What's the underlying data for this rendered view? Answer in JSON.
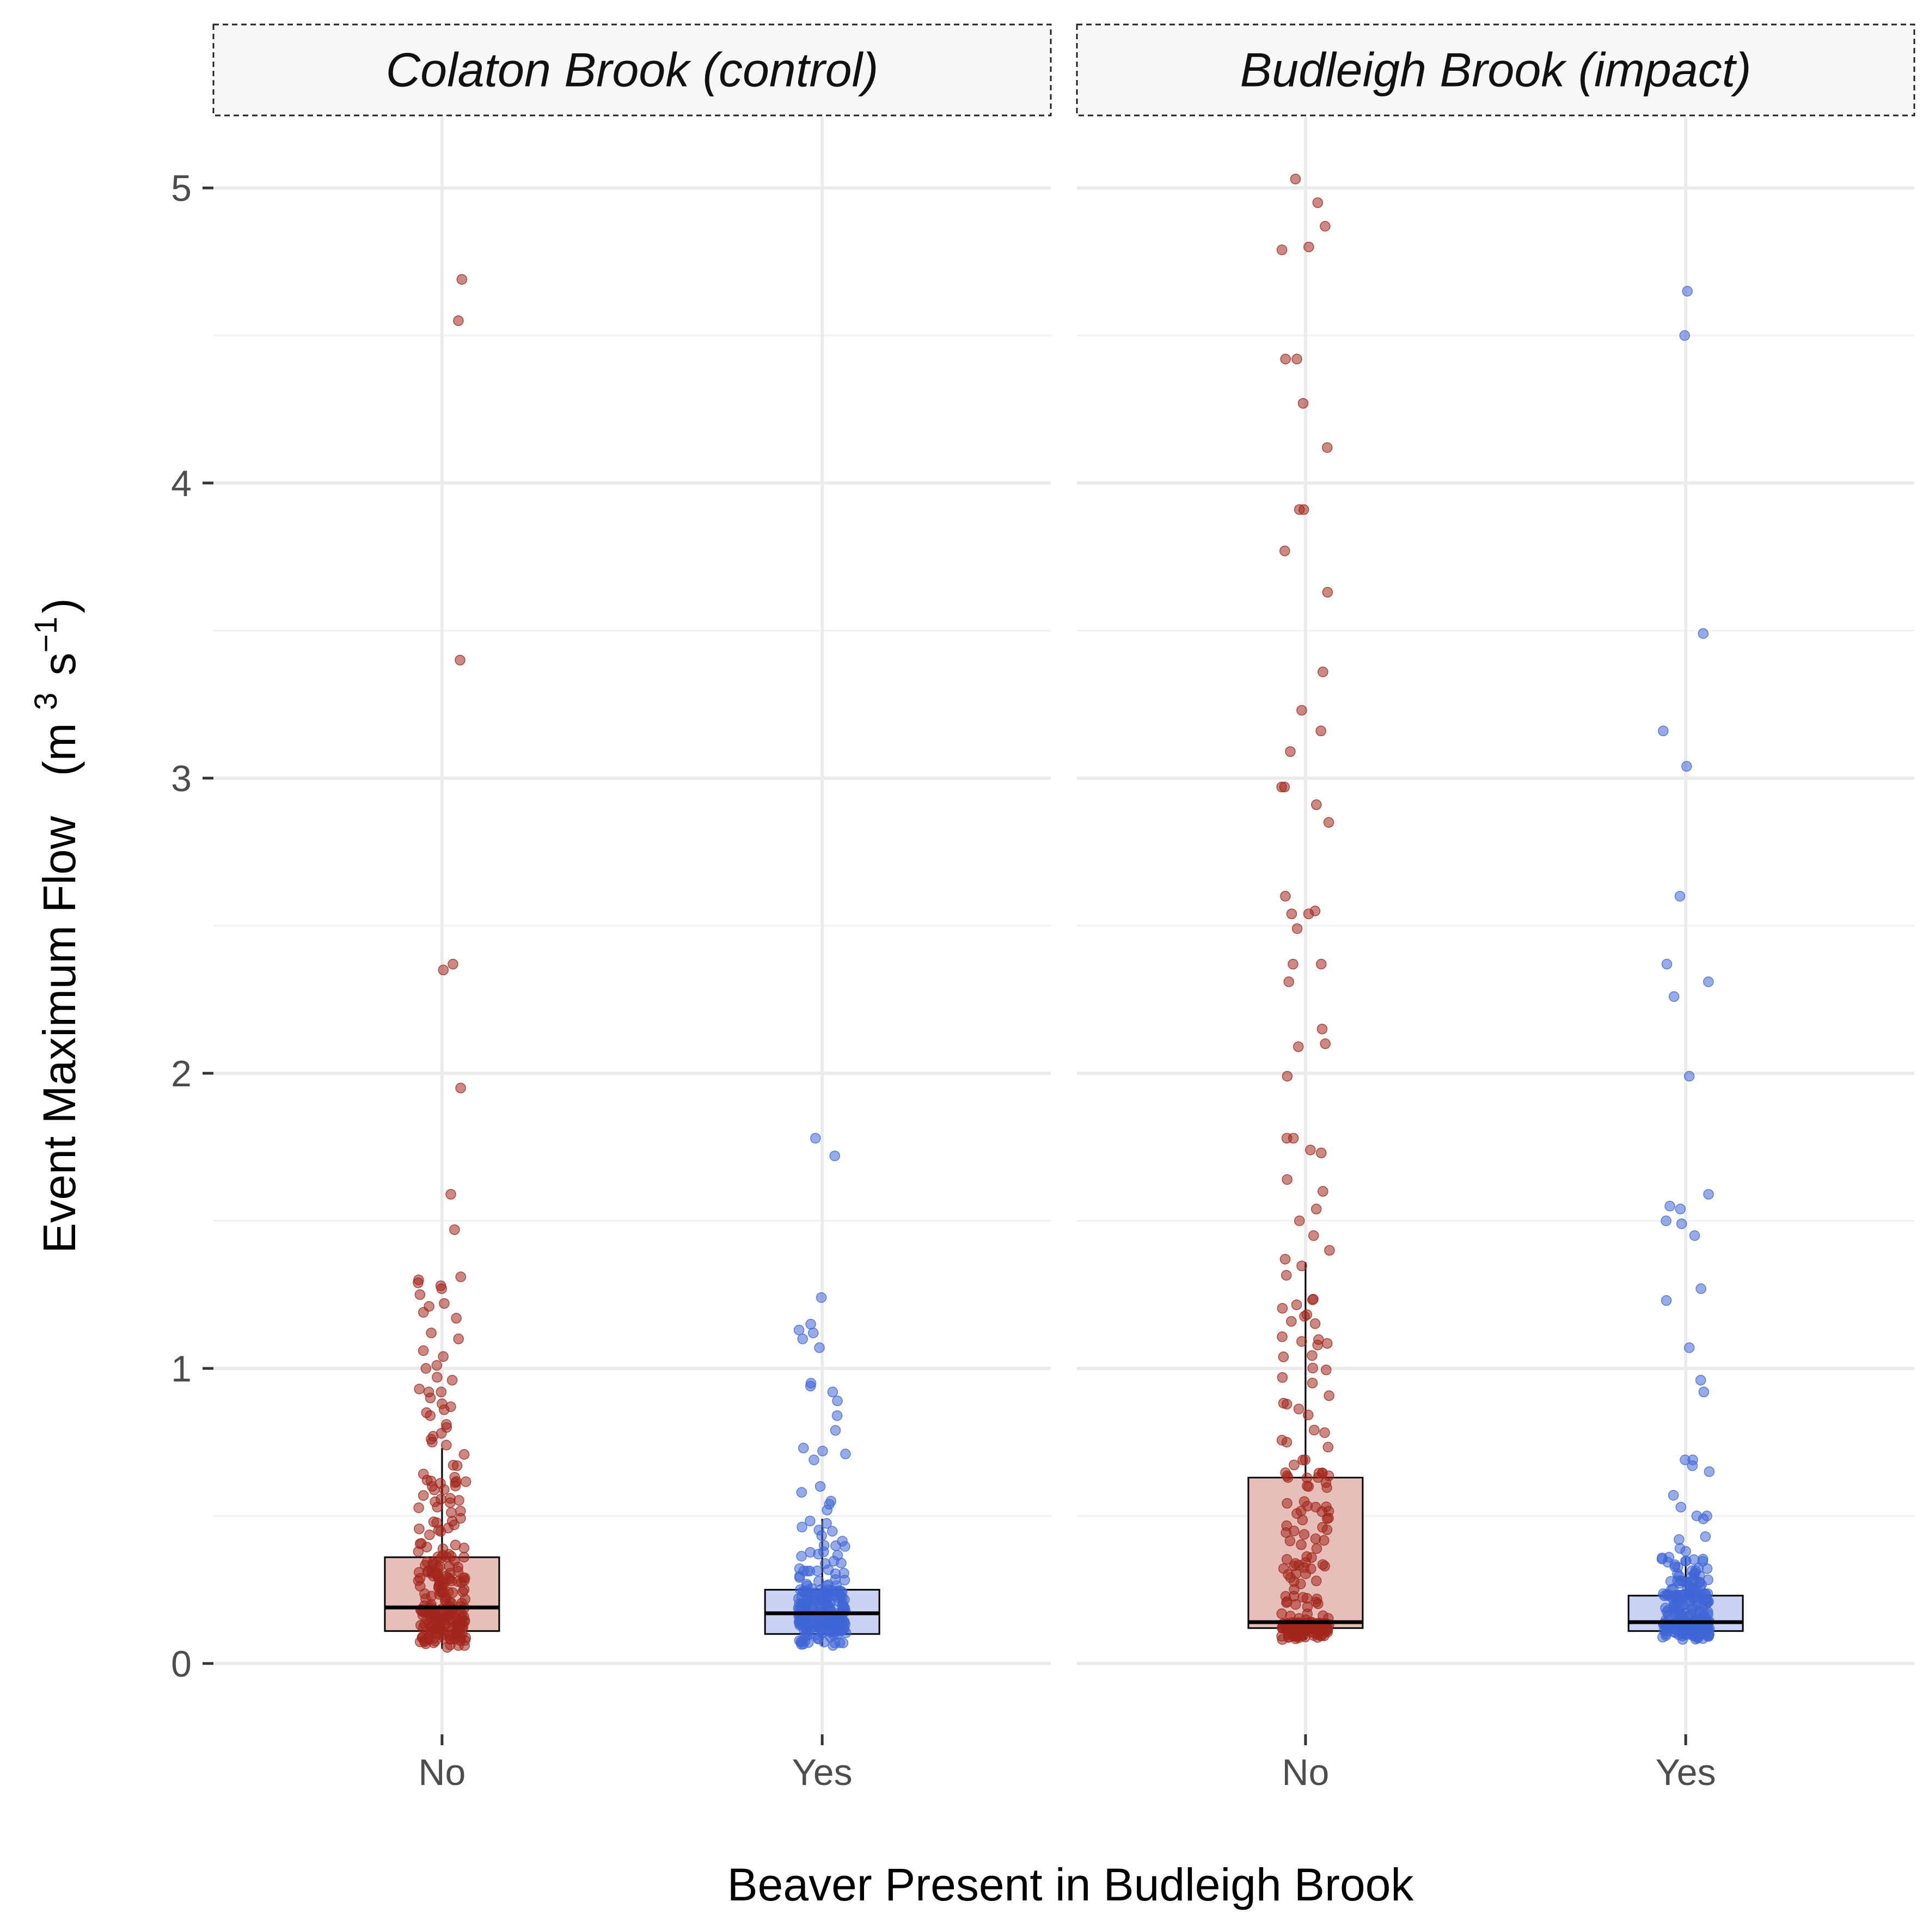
{
  "chart_data": {
    "type": "box+jitter",
    "xlabel": "Beaver Present in Budleigh Brook",
    "ylabel": "Event Maximum Flow",
    "ylabel_unit": "(m3 s-1)",
    "ylim": [
      -0.24,
      5.24
    ],
    "yticks": [
      0,
      1,
      2,
      3,
      4,
      5
    ],
    "categories": [
      "No",
      "Yes"
    ],
    "colors": {
      "No": {
        "point": "#a3271c",
        "box_fill": "#e3b8b2"
      },
      "Yes": {
        "point": "#3f66d6",
        "box_fill": "#c3cdf2"
      }
    },
    "panels": [
      {
        "title": "Colaton Brook (control)",
        "groups": [
          {
            "category": "No",
            "box": {
              "q1": 0.11,
              "median": 0.19,
              "q3": 0.36,
              "whisker_low": 0.05,
              "whisker_high": 0.73
            },
            "outliers": [
              4.69,
              4.55,
              3.4,
              2.37,
              2.35,
              1.95,
              1.59,
              1.47,
              1.31,
              1.3,
              1.29,
              1.28,
              1.27,
              1.25,
              1.22,
              1.21,
              1.19,
              1.17,
              1.12,
              1.1,
              1.06,
              1.04,
              1.01,
              1.0,
              0.97,
              0.96,
              0.93,
              0.92,
              0.92,
              0.9,
              0.88,
              0.87,
              0.86,
              0.85,
              0.84,
              0.81,
              0.8,
              0.78,
              0.77,
              0.76,
              0.75,
              0.74
            ]
          },
          {
            "category": "Yes",
            "box": {
              "q1": 0.1,
              "median": 0.17,
              "q3": 0.25,
              "whisker_low": 0.06,
              "whisker_high": 0.49
            },
            "outliers": [
              1.78,
              1.72,
              1.24,
              1.15,
              1.13,
              1.12,
              1.1,
              1.07,
              0.95,
              0.94,
              0.92,
              0.89,
              0.84,
              0.79,
              0.73,
              0.72,
              0.71,
              0.69,
              0.6,
              0.58,
              0.55,
              0.54,
              0.52
            ]
          }
        ]
      },
      {
        "title": "Budleigh Brook (impact)",
        "groups": [
          {
            "category": "No",
            "box": {
              "q1": 0.12,
              "median": 0.14,
              "q3": 0.63,
              "whisker_low": 0.08,
              "whisker_high": 1.36
            },
            "outliers": [
              5.03,
              4.95,
              4.87,
              4.8,
              4.79,
              4.42,
              4.42,
              4.27,
              4.12,
              3.91,
              3.91,
              3.77,
              3.63,
              3.36,
              3.23,
              3.16,
              3.09,
              2.97,
              2.97,
              2.91,
              2.85,
              2.6,
              2.55,
              2.54,
              2.54,
              2.49,
              2.37,
              2.37,
              2.31,
              2.15,
              2.1,
              2.09,
              1.99,
              1.78,
              1.78,
              1.74,
              1.73,
              1.64,
              1.6,
              1.54,
              1.5,
              1.45,
              1.4,
              1.37
            ]
          },
          {
            "category": "Yes",
            "box": {
              "q1": 0.11,
              "median": 0.14,
              "q3": 0.23,
              "whisker_low": 0.08,
              "whisker_high": 0.36
            },
            "outliers": [
              4.65,
              4.5,
              3.49,
              3.16,
              3.04,
              2.6,
              2.37,
              2.31,
              2.26,
              1.99,
              1.59,
              1.55,
              1.54,
              1.5,
              1.49,
              1.45,
              1.27,
              1.23,
              1.07,
              0.96,
              0.92,
              0.69,
              0.69,
              0.67,
              0.65,
              0.57,
              0.53,
              0.5,
              0.5,
              0.49,
              0.43,
              0.42,
              0.39,
              0.38
            ]
          }
        ]
      }
    ]
  }
}
